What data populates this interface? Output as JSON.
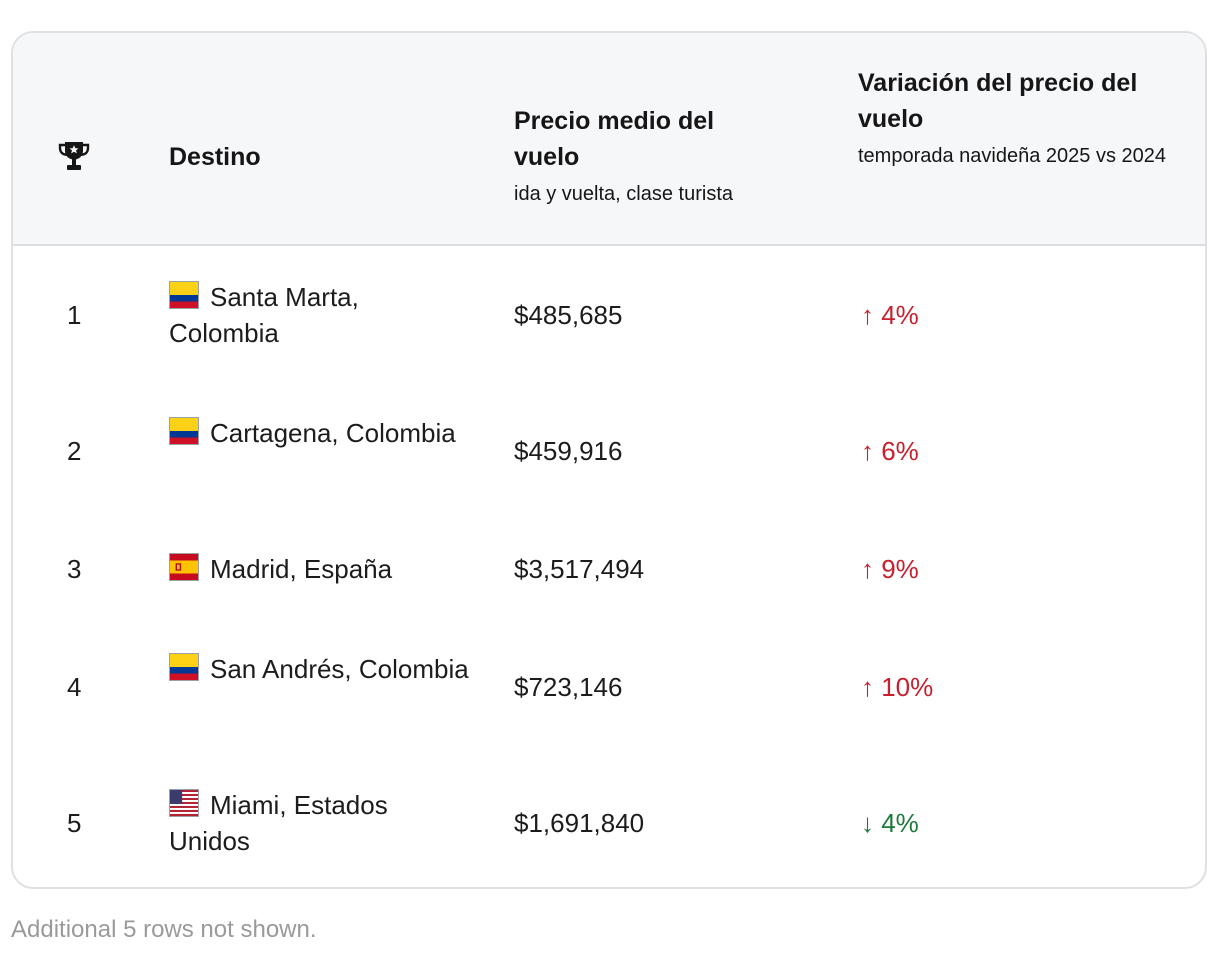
{
  "table": {
    "headers": {
      "rank_icon": "trophy-icon",
      "destination": "Destino",
      "price_title": "Precio medio del vuelo",
      "price_sub": "ida y vuelta, clase turista",
      "change_title": "Variación del precio del vuelo",
      "change_sub": "temporada navideña 2025 vs 2024"
    },
    "rows": [
      {
        "rank": "1",
        "flag": "colombia-flag-icon",
        "destination": "Santa Marta, Colombia",
        "price": "$485,685",
        "change": "↑ 4%",
        "direction": "up"
      },
      {
        "rank": "2",
        "flag": "colombia-flag-icon",
        "destination": "Cartagena, Colombia",
        "price": "$459,916",
        "change": "↑ 6%",
        "direction": "up"
      },
      {
        "rank": "3",
        "flag": "spain-flag-icon",
        "destination": "Madrid, España",
        "price": "$3,517,494",
        "change": "↑ 9%",
        "direction": "up"
      },
      {
        "rank": "4",
        "flag": "colombia-flag-icon",
        "destination": "San Andrés, Colombia",
        "price": "$723,146",
        "change": "↑ 10%",
        "direction": "up"
      },
      {
        "rank": "5",
        "flag": "usa-flag-icon",
        "destination": "Miami, Estados Unidos",
        "price": "$1,691,840",
        "change": "↓ 4%",
        "direction": "down"
      }
    ]
  },
  "footnote": "Additional 5 rows not shown.",
  "colors": {
    "increase": "#c8202f",
    "decrease": "#1d7a3a",
    "header_bg": "#f6f7f9",
    "border": "#dfe0e3"
  }
}
